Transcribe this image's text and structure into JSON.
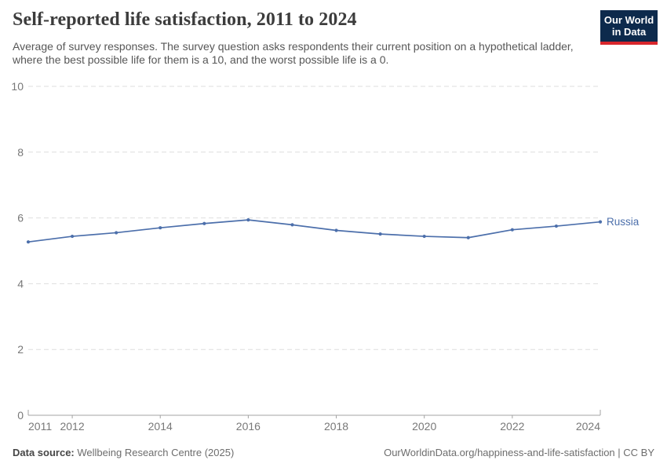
{
  "header": {
    "title": "Self-reported life satisfaction, 2011 to 2024",
    "subtitle": "Average of survey responses. The survey question asks respondents their current position on a hypothetical ladder, where the best possible life for them is a 10, and the worst possible life is a 0."
  },
  "logo": {
    "line1": "Our World",
    "line2": "in Data",
    "bg_color": "#0d2a4c",
    "stripe_color": "#d8262c"
  },
  "footer": {
    "source_label": "Data source:",
    "source_text": " Wellbeing Research Centre (2025)",
    "citation": "OurWorldinData.org/happiness-and-life-satisfaction | CC BY"
  },
  "chart_data": {
    "type": "line",
    "title": "Self-reported life satisfaction, 2011 to 2024",
    "x": [
      2011,
      2012,
      2013,
      2014,
      2015,
      2016,
      2017,
      2018,
      2019,
      2020,
      2021,
      2022,
      2023,
      2024
    ],
    "series": [
      {
        "name": "Russia",
        "color": "#4c6fab",
        "values": [
          5.27,
          5.44,
          5.55,
          5.7,
          5.83,
          5.94,
          5.79,
          5.62,
          5.51,
          5.44,
          5.4,
          5.64,
          5.75,
          5.88
        ]
      }
    ],
    "xlabel": "",
    "ylabel": "",
    "ylim": [
      0,
      10
    ],
    "yticks": [
      0,
      2,
      4,
      6,
      8,
      10
    ],
    "xtick_labels": [
      2011,
      2012,
      2014,
      2016,
      2018,
      2020,
      2022,
      2024
    ],
    "grid": "horizontal-dashed",
    "legend_position": "line-end-label",
    "colors": {
      "grid": "#dedede",
      "axis": "#a3a3a3",
      "tick_text": "#787878"
    }
  }
}
